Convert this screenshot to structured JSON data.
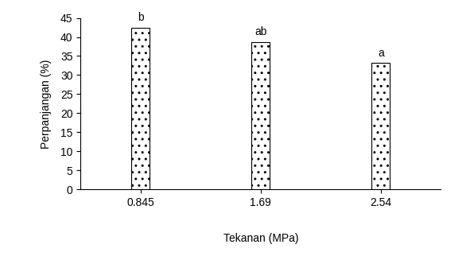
{
  "chart_data": {
    "type": "bar",
    "x_label": "Tekanan (MPa)",
    "y_label": "Perpanjangan (%)",
    "categories": [
      "0.845",
      "1.69",
      "2.54"
    ],
    "values": [
      42.5,
      38.7,
      33.2
    ],
    "annotations": [
      "b",
      "ab",
      "a"
    ],
    "color": "#ffffff",
    "ylim": [
      0,
      45
    ],
    "yticks": [
      0,
      5,
      10,
      15,
      20,
      25,
      30,
      35,
      40,
      45
    ],
    "grid": false
  }
}
